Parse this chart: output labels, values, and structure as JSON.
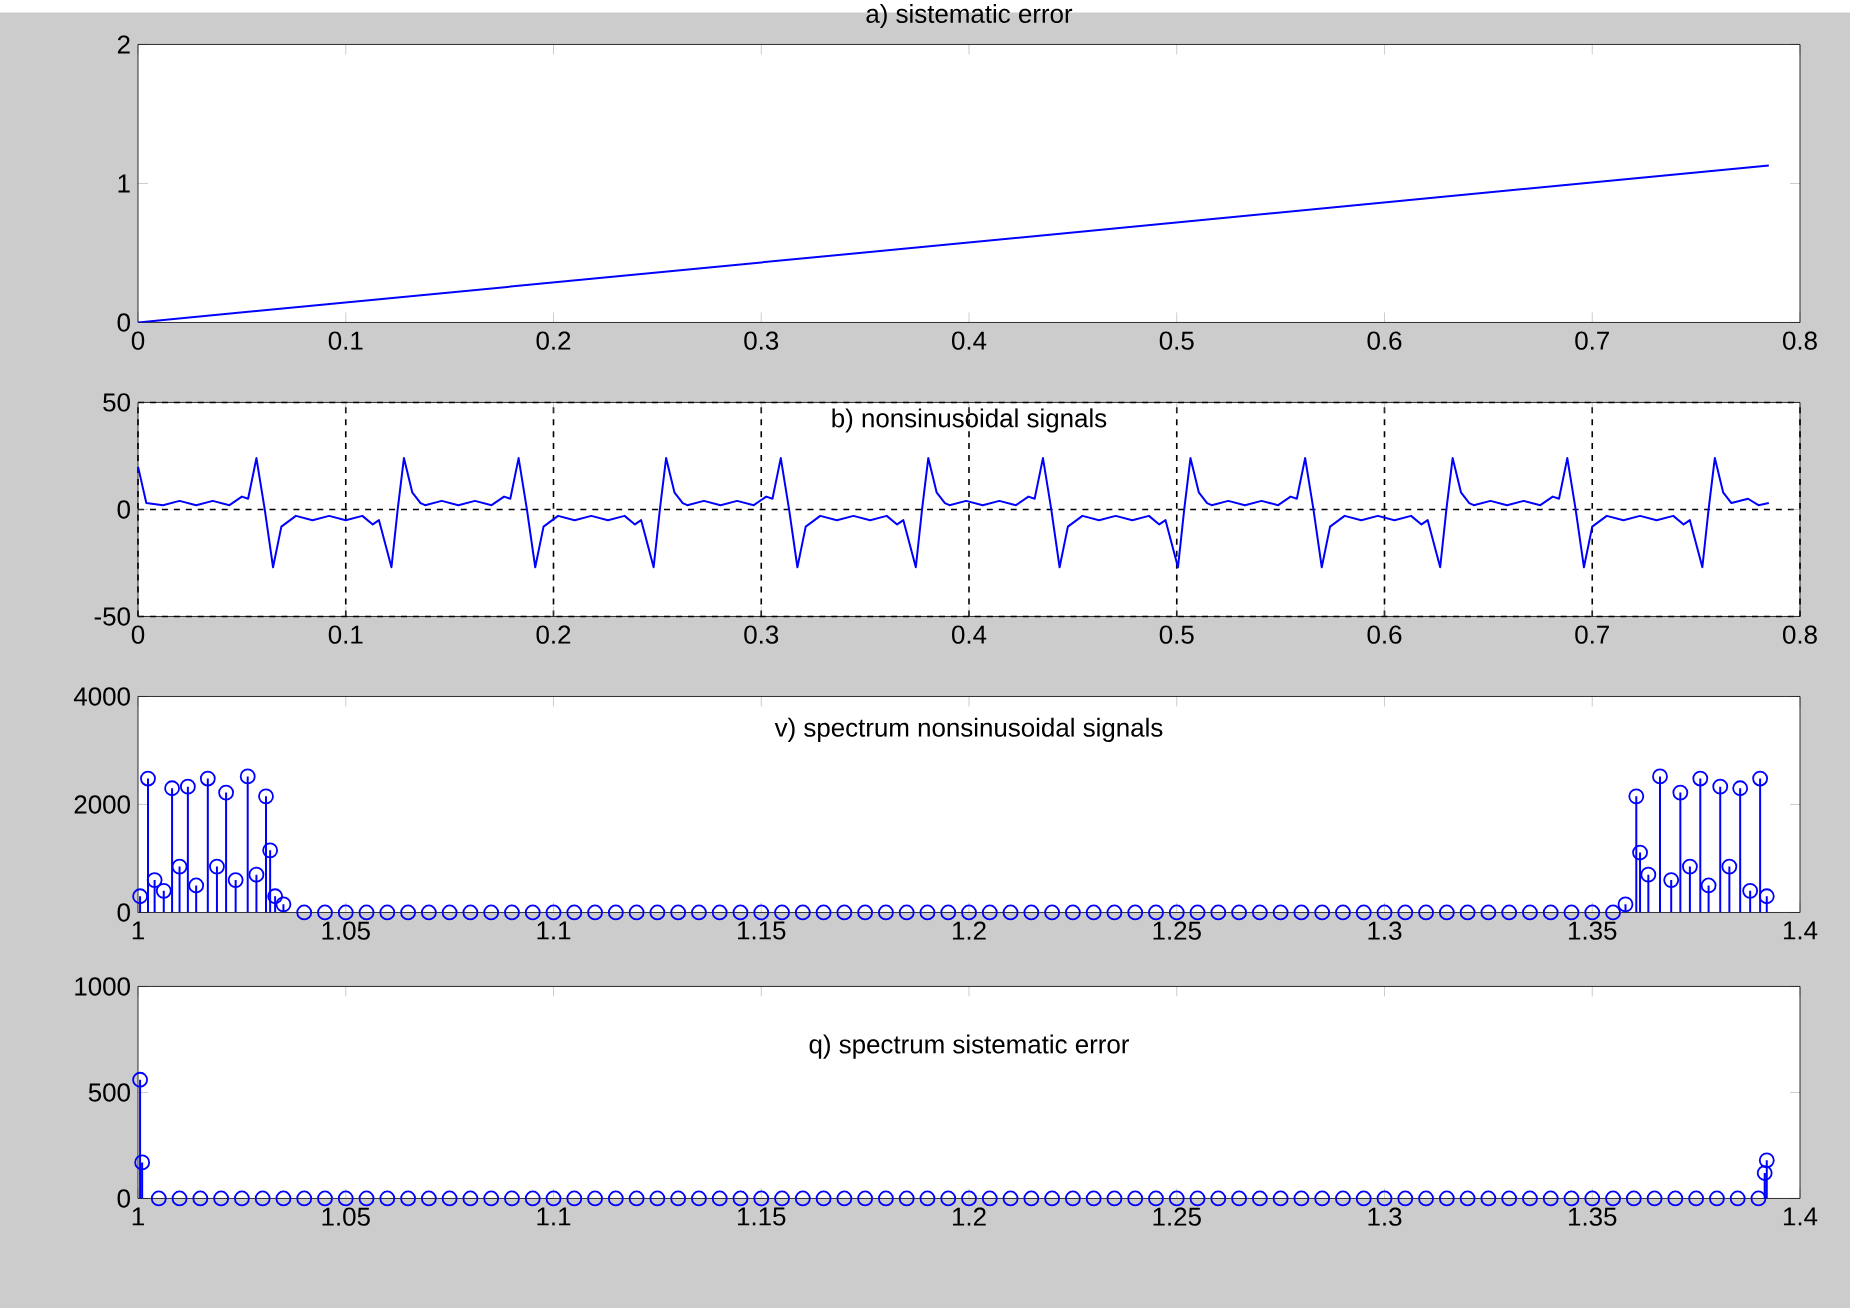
{
  "chart_data": [
    {
      "type": "line",
      "title": "a) sistematic error",
      "color": "#0000ff",
      "x": [
        0,
        0.785
      ],
      "values": [
        0,
        1.13
      ],
      "xlim": [
        0,
        0.8
      ],
      "ylim": [
        0,
        2
      ],
      "xticks": [
        0,
        0.1,
        0.2,
        0.3,
        0.4,
        0.5,
        0.6,
        0.7,
        0.8
      ],
      "yticks": [
        0,
        1,
        2
      ]
    },
    {
      "type": "line",
      "title": "b) nonsinusoidal signals",
      "color": "#0000ff",
      "grid": true,
      "x": [
        0,
        0.004,
        0.012,
        0.02,
        0.028,
        0.036,
        0.044,
        0.05,
        0.053,
        0.057,
        0.061,
        0.065,
        0.069,
        0.076,
        0.084,
        0.092,
        0.1,
        0.108,
        0.113,
        0.116,
        0.122,
        0.125,
        0.128,
        0.132,
        0.136,
        0.1382,
        0.1462,
        0.1542,
        0.1622,
        0.1702,
        0.1762,
        0.1792,
        0.1832,
        0.1872,
        0.1912,
        0.1952,
        0.2022,
        0.2102,
        0.2182,
        0.2262,
        0.2342,
        0.2392,
        0.2422,
        0.2482,
        0.2512,
        0.2542,
        0.2582,
        0.2622,
        0.2644,
        0.2724,
        0.2804,
        0.2884,
        0.2964,
        0.3024,
        0.3054,
        0.3094,
        0.3134,
        0.3174,
        0.3214,
        0.3284,
        0.3364,
        0.3444,
        0.3524,
        0.3604,
        0.3654,
        0.3684,
        0.3744,
        0.3774,
        0.3804,
        0.3844,
        0.3884,
        0.3906,
        0.3986,
        0.4066,
        0.4146,
        0.4226,
        0.4286,
        0.4316,
        0.4356,
        0.4396,
        0.4436,
        0.4476,
        0.4546,
        0.4626,
        0.4706,
        0.4786,
        0.4866,
        0.4916,
        0.4946,
        0.5006,
        0.5036,
        0.5066,
        0.5106,
        0.5146,
        0.5168,
        0.5248,
        0.5328,
        0.5408,
        0.5488,
        0.5548,
        0.5578,
        0.5618,
        0.5658,
        0.5698,
        0.5738,
        0.5808,
        0.5888,
        0.5968,
        0.6048,
        0.6128,
        0.6178,
        0.6208,
        0.6268,
        0.6298,
        0.6328,
        0.6368,
        0.6408,
        0.643,
        0.651,
        0.659,
        0.667,
        0.675,
        0.681,
        0.684,
        0.688,
        0.692,
        0.696,
        0.7,
        0.707,
        0.715,
        0.723,
        0.731,
        0.739,
        0.744,
        0.747,
        0.753,
        0.756,
        0.759,
        0.763,
        0.767,
        0.775,
        0.78,
        0.785
      ],
      "values": [
        20,
        3,
        2,
        4,
        2,
        4,
        2,
        6,
        5,
        24,
        0,
        -27,
        -8,
        -3,
        -5,
        -3,
        -5,
        -3,
        -7,
        -5,
        -27,
        0,
        24,
        8,
        3,
        2,
        4,
        2,
        4,
        2,
        6,
        5,
        24,
        0,
        -27,
        -8,
        -3,
        -5,
        -3,
        -5,
        -3,
        -7,
        -5,
        -27,
        0,
        24,
        8,
        3,
        2,
        4,
        2,
        4,
        2,
        6,
        5,
        24,
        0,
        -27,
        -8,
        -3,
        -5,
        -3,
        -5,
        -3,
        -7,
        -5,
        -27,
        0,
        24,
        8,
        3,
        2,
        4,
        2,
        4,
        2,
        6,
        5,
        24,
        0,
        -27,
        -8,
        -3,
        -5,
        -3,
        -5,
        -3,
        -7,
        -5,
        -27,
        0,
        24,
        8,
        3,
        2,
        4,
        2,
        4,
        2,
        6,
        5,
        24,
        0,
        -27,
        -8,
        -3,
        -5,
        -3,
        -5,
        -3,
        -7,
        -5,
        -27,
        0,
        24,
        8,
        3,
        2,
        4,
        2,
        4,
        2,
        6,
        5,
        24,
        0,
        -27,
        -8,
        -3,
        -5,
        -3,
        -5,
        -3,
        -7,
        -5,
        -27,
        0,
        24,
        8,
        3,
        5,
        2,
        3
      ],
      "xlim": [
        0,
        0.8
      ],
      "ylim": [
        -50,
        50
      ],
      "xticks": [
        0,
        0.1,
        0.2,
        0.3,
        0.4,
        0.5,
        0.6,
        0.7,
        0.8
      ],
      "yticks": [
        -50,
        0,
        50
      ]
    },
    {
      "type": "lollipop",
      "title": "v) spectrum nonsinusoidal signals",
      "color": "#0000ff",
      "marker": "circle",
      "x": [
        1.0005,
        1.0024,
        1.004,
        1.0062,
        1.0082,
        1.01,
        1.012,
        1.014,
        1.0168,
        1.019,
        1.0212,
        1.0235,
        1.0264,
        1.0285,
        1.0308,
        1.0318,
        1.033,
        1.035,
        1.04,
        1.045,
        1.05,
        1.055,
        1.06,
        1.065,
        1.07,
        1.075,
        1.08,
        1.085,
        1.09,
        1.095,
        1.1,
        1.105,
        1.11,
        1.115,
        1.12,
        1.125,
        1.13,
        1.135,
        1.14,
        1.145,
        1.15,
        1.155,
        1.16,
        1.165,
        1.17,
        1.175,
        1.18,
        1.185,
        1.19,
        1.195,
        1.2,
        1.205,
        1.21,
        1.215,
        1.22,
        1.225,
        1.23,
        1.235,
        1.24,
        1.245,
        1.25,
        1.255,
        1.26,
        1.265,
        1.27,
        1.275,
        1.28,
        1.285,
        1.29,
        1.295,
        1.3,
        1.305,
        1.31,
        1.315,
        1.32,
        1.325,
        1.33,
        1.335,
        1.34,
        1.345,
        1.35,
        1.355,
        1.358,
        1.3606,
        1.3615,
        1.3635,
        1.3663,
        1.369,
        1.3712,
        1.3735,
        1.376,
        1.378,
        1.3808,
        1.383,
        1.3856,
        1.388,
        1.3904,
        1.392
      ],
      "values": [
        300,
        2480,
        600,
        400,
        2300,
        850,
        2330,
        500,
        2480,
        850,
        2220,
        600,
        2520,
        700,
        2150,
        1150,
        300,
        150,
        0,
        0,
        0,
        0,
        0,
        0,
        0,
        0,
        0,
        0,
        0,
        0,
        0,
        0,
        0,
        0,
        0,
        0,
        0,
        0,
        0,
        0,
        0,
        0,
        0,
        0,
        0,
        0,
        0,
        0,
        0,
        0,
        0,
        0,
        0,
        0,
        0,
        0,
        0,
        0,
        0,
        0,
        0,
        0,
        0,
        0,
        0,
        0,
        0,
        0,
        0,
        0,
        0,
        0,
        0,
        0,
        0,
        0,
        0,
        0,
        0,
        0,
        0,
        0,
        150,
        2150,
        1110,
        700,
        2520,
        600,
        2220,
        850,
        2480,
        500,
        2330,
        850,
        2300,
        400,
        2480,
        300
      ],
      "xlim": [
        1,
        1.4
      ],
      "ylim": [
        0,
        4000
      ],
      "xticks": [
        1,
        1.05,
        1.1,
        1.15,
        1.2,
        1.25,
        1.3,
        1.35,
        1.4
      ],
      "yticks": [
        0,
        2000,
        4000
      ]
    },
    {
      "type": "lollipop",
      "title": "q) spectrum sistematic error",
      "color": "#0000ff",
      "marker": "circle",
      "x": [
        1.0005,
        1.001,
        1.005,
        1.01,
        1.015,
        1.02,
        1.025,
        1.03,
        1.035,
        1.04,
        1.045,
        1.05,
        1.055,
        1.06,
        1.065,
        1.07,
        1.075,
        1.08,
        1.085,
        1.09,
        1.095,
        1.1,
        1.105,
        1.11,
        1.115,
        1.12,
        1.125,
        1.13,
        1.135,
        1.14,
        1.145,
        1.15,
        1.155,
        1.16,
        1.165,
        1.17,
        1.175,
        1.18,
        1.185,
        1.19,
        1.195,
        1.2,
        1.205,
        1.21,
        1.215,
        1.22,
        1.225,
        1.23,
        1.235,
        1.24,
        1.245,
        1.25,
        1.255,
        1.26,
        1.265,
        1.27,
        1.275,
        1.28,
        1.285,
        1.29,
        1.295,
        1.3,
        1.305,
        1.31,
        1.315,
        1.32,
        1.325,
        1.33,
        1.335,
        1.34,
        1.345,
        1.35,
        1.355,
        1.36,
        1.365,
        1.37,
        1.375,
        1.38,
        1.385,
        1.39,
        1.3915,
        1.392
      ],
      "values": [
        560,
        170,
        0,
        0,
        0,
        0,
        0,
        0,
        0,
        0,
        0,
        0,
        0,
        0,
        0,
        0,
        0,
        0,
        0,
        0,
        0,
        0,
        0,
        0,
        0,
        0,
        0,
        0,
        0,
        0,
        0,
        0,
        0,
        0,
        0,
        0,
        0,
        0,
        0,
        0,
        0,
        0,
        0,
        0,
        0,
        0,
        0,
        0,
        0,
        0,
        0,
        0,
        0,
        0,
        0,
        0,
        0,
        0,
        0,
        0,
        0,
        0,
        0,
        0,
        0,
        0,
        0,
        0,
        0,
        0,
        0,
        0,
        0,
        0,
        0,
        0,
        0,
        0,
        0,
        0,
        120,
        180
      ],
      "xlim": [
        1,
        1.4
      ],
      "ylim": [
        0,
        1000
      ],
      "xticks": [
        1,
        1.05,
        1.1,
        1.15,
        1.2,
        1.25,
        1.3,
        1.35,
        1.4
      ],
      "yticks": [
        0,
        500,
        1000
      ]
    }
  ]
}
